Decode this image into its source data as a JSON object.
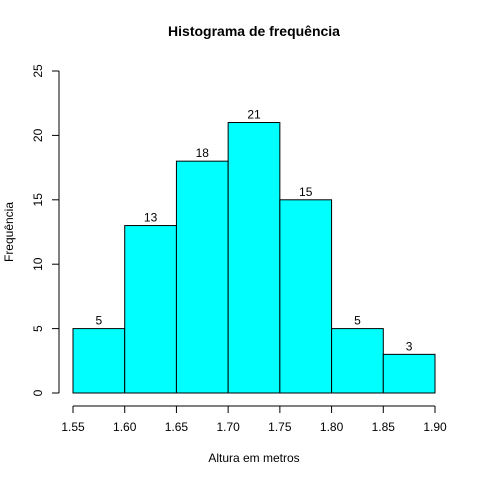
{
  "chart_data": {
    "type": "bar",
    "title": "Histograma de frequência",
    "xlabel": "Altura em metros",
    "ylabel": "Frequência",
    "bins": [
      {
        "from": 1.55,
        "to": 1.6,
        "value": 5
      },
      {
        "from": 1.6,
        "to": 1.65,
        "value": 13
      },
      {
        "from": 1.65,
        "to": 1.7,
        "value": 18
      },
      {
        "from": 1.7,
        "to": 1.75,
        "value": 21
      },
      {
        "from": 1.75,
        "to": 1.8,
        "value": 15
      },
      {
        "from": 1.8,
        "to": 1.85,
        "value": 5
      },
      {
        "from": 1.85,
        "to": 1.9,
        "value": 3
      }
    ],
    "xticks": [
      "1.55",
      "1.60",
      "1.65",
      "1.70",
      "1.75",
      "1.80",
      "1.85",
      "1.90"
    ],
    "yticks": [
      "0",
      "5",
      "10",
      "15",
      "20",
      "25"
    ],
    "xlim": [
      1.55,
      1.9
    ],
    "ylim": [
      0,
      25
    ],
    "grid": false,
    "bar_color": "#00FFFF",
    "edge_color": "#000000"
  }
}
